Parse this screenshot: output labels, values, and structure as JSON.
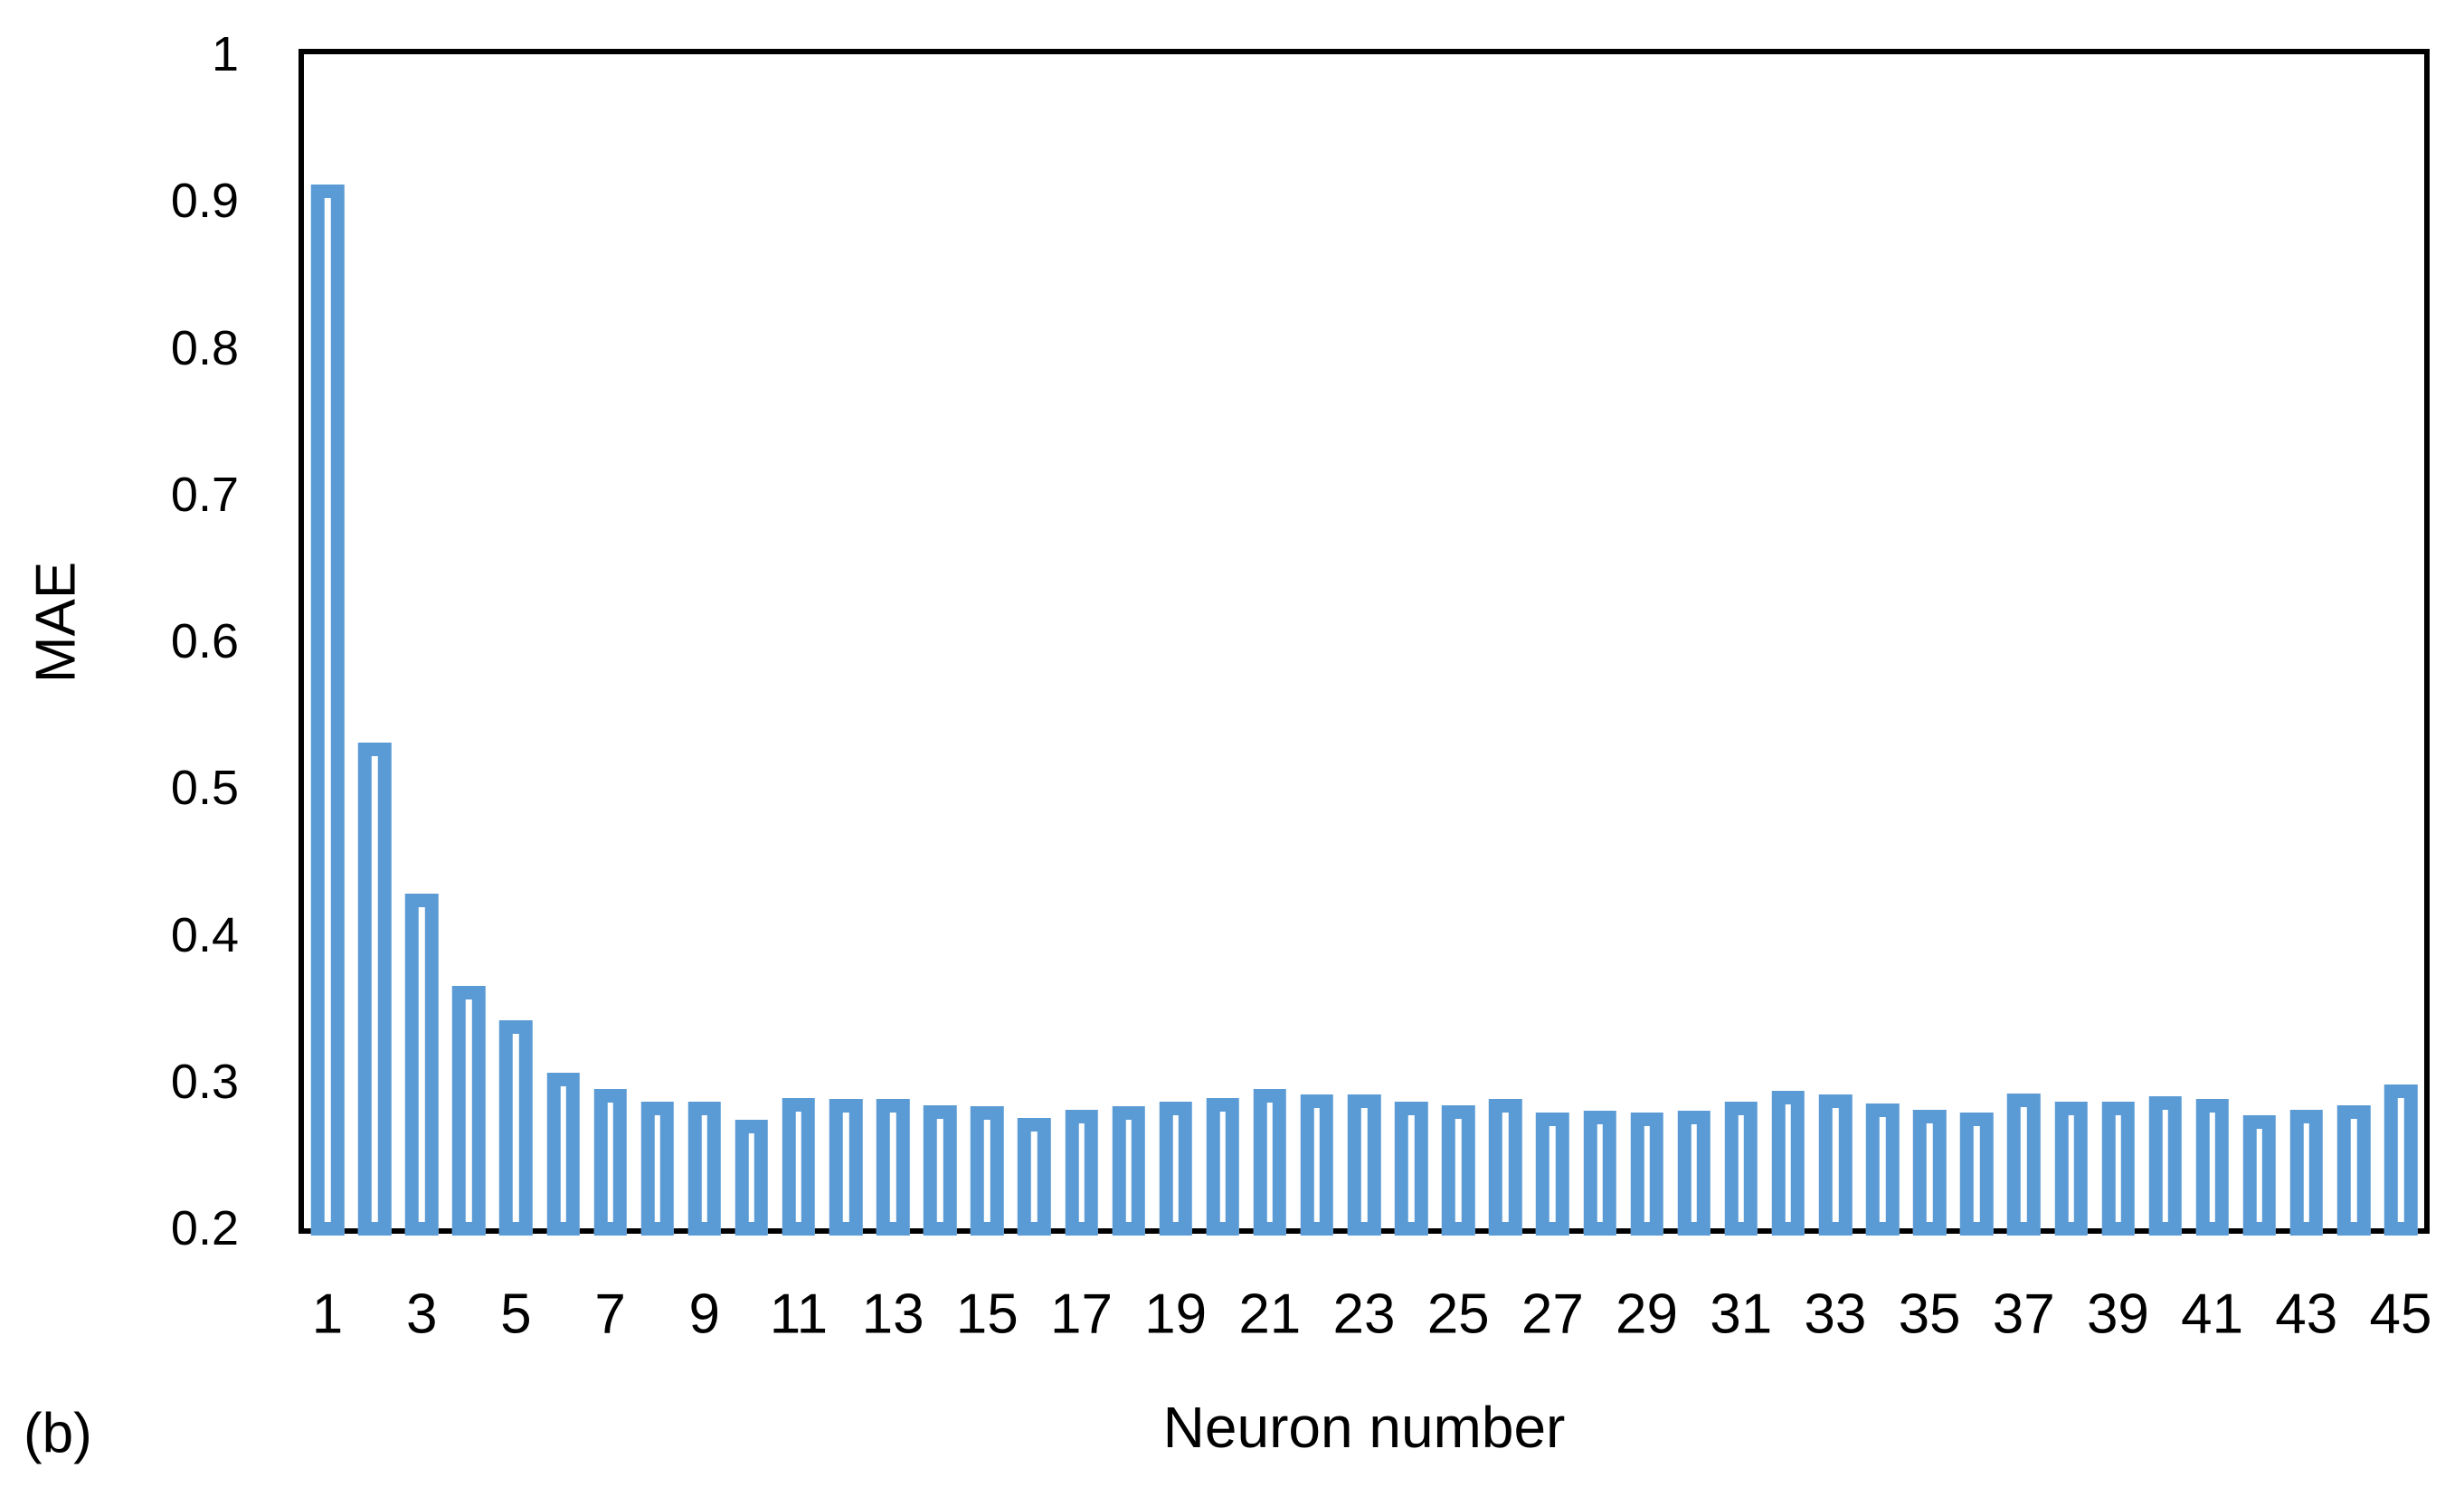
{
  "panel_label": "(b)",
  "colors": {
    "bar_outline": "#5B9BD5",
    "bar_fill": "#FFFFFF",
    "axis": "#000000",
    "text": "#000000",
    "background": "#FFFFFF"
  },
  "chart_data": {
    "type": "bar",
    "title": "",
    "xlabel": "Neuron number",
    "ylabel": "MAE",
    "ylim": [
      0.2,
      1.0
    ],
    "grid": false,
    "legend": "none",
    "bar_style": "hollow outlined rectangles",
    "categories": [
      1,
      2,
      3,
      4,
      5,
      6,
      7,
      8,
      9,
      10,
      11,
      12,
      13,
      14,
      15,
      16,
      17,
      18,
      19,
      20,
      21,
      22,
      23,
      24,
      25,
      26,
      27,
      28,
      29,
      30,
      31,
      32,
      33,
      34,
      35,
      36,
      37,
      38,
      39,
      40,
      41,
      42,
      43,
      44,
      45
    ],
    "values": [
      0.911,
      0.531,
      0.428,
      0.365,
      0.342,
      0.306,
      0.295,
      0.286,
      0.286,
      0.274,
      0.289,
      0.288,
      0.288,
      0.284,
      0.283,
      0.275,
      0.281,
      0.283,
      0.286,
      0.289,
      0.295,
      0.291,
      0.291,
      0.286,
      0.284,
      0.288,
      0.279,
      0.28,
      0.279,
      0.28,
      0.286,
      0.294,
      0.291,
      0.285,
      0.281,
      0.279,
      0.292,
      0.286,
      0.286,
      0.29,
      0.288,
      0.277,
      0.281,
      0.284,
      0.298
    ],
    "y_ticks": [
      {
        "label": "1",
        "value": 1.0
      },
      {
        "label": "0.9",
        "value": 0.9
      },
      {
        "label": "0.8",
        "value": 0.8
      },
      {
        "label": "0.7",
        "value": 0.7
      },
      {
        "label": "0.6",
        "value": 0.6
      },
      {
        "label": "0.5",
        "value": 0.5
      },
      {
        "label": "0.4",
        "value": 0.4
      },
      {
        "label": "0.3",
        "value": 0.3
      },
      {
        "label": "0.2",
        "value": 0.2
      }
    ],
    "x_tick_labels": [
      "1",
      "3",
      "5",
      "7",
      "9",
      "11",
      "13",
      "15",
      "17",
      "19",
      "21",
      "23",
      "25",
      "27",
      "29",
      "31",
      "33",
      "35",
      "37",
      "39",
      "41",
      "43",
      "45"
    ]
  }
}
